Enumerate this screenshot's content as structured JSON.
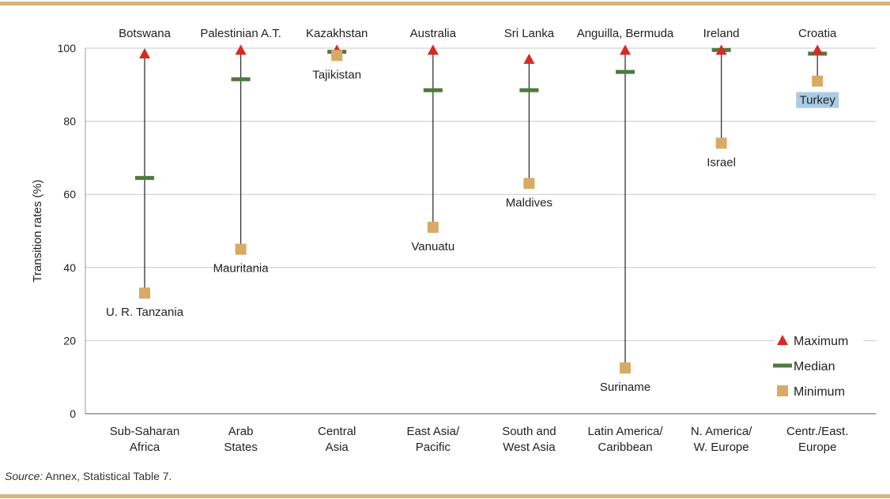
{
  "chart_data": {
    "type": "range",
    "ylabel": "Transition rates (%)",
    "ylim": [
      0,
      100
    ],
    "yticks": [
      0,
      20,
      40,
      60,
      80,
      100
    ],
    "grid": true,
    "legend_position": "bottom-right",
    "legend": [
      {
        "key": "max",
        "label": "Maximum",
        "marker": "triangle",
        "color": "#d62b24"
      },
      {
        "key": "median",
        "label": "Median",
        "marker": "dash",
        "color": "#4f7a3f"
      },
      {
        "key": "min",
        "label": "Minimum",
        "marker": "square",
        "color": "#d9aa66"
      }
    ],
    "categories": [
      {
        "name": "Sub-Saharan\nAfrica",
        "max": 98.5,
        "max_country": "Botswana",
        "median": 64.5,
        "min": 33,
        "min_country": "U. R. Tanzania"
      },
      {
        "name": "Arab\nStates",
        "max": 99.5,
        "max_country": "Palestinian A.T.",
        "median": 91.5,
        "min": 45,
        "min_country": "Mauritania"
      },
      {
        "name": "Central\nAsia",
        "max": 99.5,
        "max_country": "Kazakhstan",
        "median": 99,
        "min": 98,
        "min_country": "Tajikistan"
      },
      {
        "name": "East Asia/\nPacific",
        "max": 99.5,
        "max_country": "Australia",
        "median": 88.5,
        "min": 51,
        "min_country": "Vanuatu"
      },
      {
        "name": "South and\nWest Asia",
        "max": 97,
        "max_country": "Sri Lanka",
        "median": 88.5,
        "min": 63,
        "min_country": "Maldives"
      },
      {
        "name": "Latin America/\nCaribbean",
        "max": 99.5,
        "max_country": "Anguilla, Bermuda",
        "median": 93.5,
        "min": 12.5,
        "min_country": "Suriname"
      },
      {
        "name": "N. America/\nW. Europe",
        "max": 99.5,
        "max_country": "Ireland",
        "median": 99.5,
        "min": 74,
        "min_country": "Israel"
      },
      {
        "name": "Centr./East.\nEurope",
        "max": 99.5,
        "max_country": "Croatia",
        "median": 98.5,
        "min": 91,
        "min_country": "Turkey",
        "min_country_highlight": "#a9cbe6"
      }
    ]
  },
  "source": {
    "prefix": "Source:",
    "text": " Annex, Statistical Table 7."
  }
}
